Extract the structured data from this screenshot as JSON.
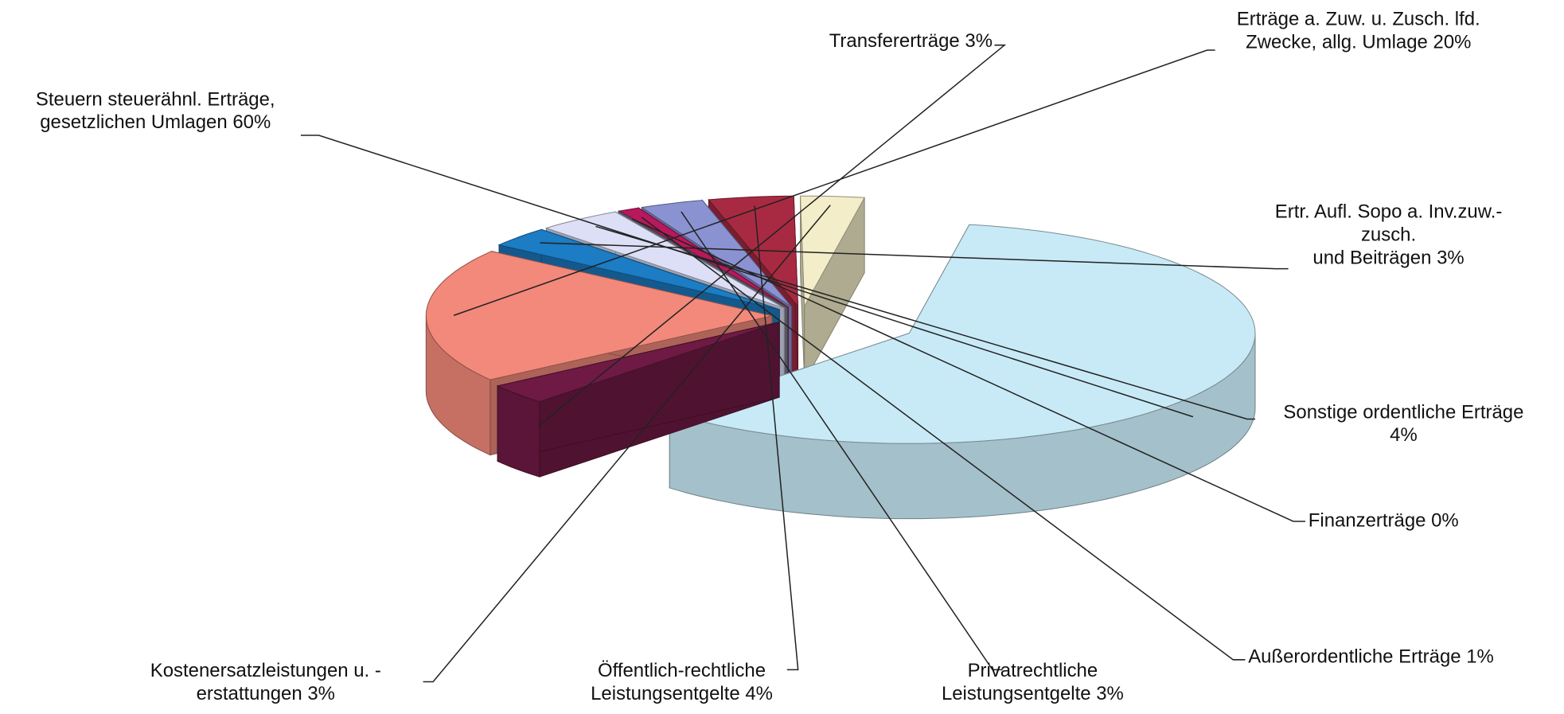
{
  "chart_data": {
    "type": "pie",
    "categories": [
      "Steuern steuerähnl. Erträge,\ngesetzlichen Umlagen",
      "Transfererträge",
      "Erträge a. Zuw. u. Zusch. lfd.\nZwecke, allg. Umlage",
      "Ertr. Aufl. Sopo a. Inv.zuw.-\nzusch.\nund Beiträgen",
      "Sonstige ordentliche Erträge",
      "Finanzerträge",
      "Außerordentliche Erträge",
      "Privatrechtliche\nLeistungsentgelte",
      "Öffentlich-rechtliche\nLeistungsentgelte",
      "Kostenersatzleistungen u. -\nerstattungen"
    ],
    "values": [
      60,
      3,
      20,
      3,
      4,
      0,
      1,
      3,
      4,
      3
    ],
    "value_labels": [
      "60%",
      "3%",
      "20%",
      "3%",
      "4%",
      "0%",
      "1%",
      "3%",
      "4%",
      "3%"
    ],
    "colors": [
      "#c8eaf6",
      "#6e1a44",
      "#f2897a",
      "#1c7cc4",
      "#dcdff6",
      "#7a7a8a",
      "#b8185c",
      "#8a92d2",
      "#a82a42",
      "#f3edc9"
    ]
  }
}
